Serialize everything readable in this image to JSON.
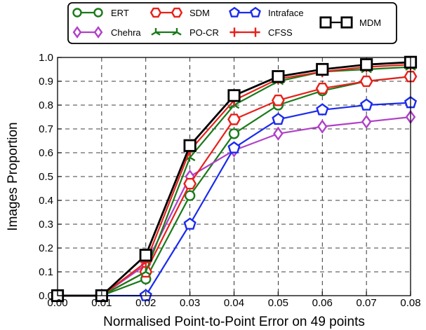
{
  "chart_data": {
    "type": "line",
    "title": "",
    "xlabel": "Normalised Point-to-Point Error on 49 points",
    "ylabel": "Images Proportion",
    "xlim": [
      0,
      0.08
    ],
    "ylim": [
      0,
      1.0
    ],
    "grid": true,
    "grid_style": "dashed",
    "legend_position": "top",
    "x_ticks": [
      "0.00",
      "0.01",
      "0.02",
      "0.03",
      "0.04",
      "0.05",
      "0.06",
      "0.07",
      "0.08"
    ],
    "y_ticks": [
      "0.0",
      "0.1",
      "0.2",
      "0.3",
      "0.4",
      "0.5",
      "0.6",
      "0.7",
      "0.8",
      "0.9",
      "1.0"
    ],
    "x": [
      0.0,
      0.01,
      0.02,
      0.03,
      0.04,
      0.05,
      0.06,
      0.07,
      0.08
    ],
    "series": [
      {
        "name": "ERT",
        "color": "#1a7a1a",
        "marker": "circle",
        "values": [
          0.0,
          0.0,
          0.07,
          0.42,
          0.68,
          0.8,
          0.86,
          0.9,
          0.92
        ]
      },
      {
        "name": "Chehra",
        "color": "#b040c8",
        "marker": "diamond",
        "values": [
          0.0,
          0.0,
          0.13,
          0.5,
          0.61,
          0.68,
          0.71,
          0.73,
          0.75
        ]
      },
      {
        "name": "SDM",
        "color": "#e8201a",
        "marker": "hexagon",
        "values": [
          0.0,
          0.0,
          0.1,
          0.47,
          0.74,
          0.82,
          0.87,
          0.9,
          0.92
        ]
      },
      {
        "name": "PO-CR",
        "color": "#1a7a1a",
        "marker": "tri",
        "values": [
          0.0,
          0.0,
          0.1,
          0.58,
          0.8,
          0.9,
          0.94,
          0.95,
          0.96
        ]
      },
      {
        "name": "Intraface",
        "color": "#1a2aee",
        "marker": "pentagon",
        "values": [
          0.0,
          0.0,
          0.0,
          0.3,
          0.62,
          0.74,
          0.78,
          0.8,
          0.81
        ]
      },
      {
        "name": "CFSS",
        "color": "#e8201a",
        "marker": "plus",
        "values": [
          0.0,
          0.0,
          0.14,
          0.61,
          0.82,
          0.91,
          0.94,
          0.96,
          0.97
        ]
      },
      {
        "name": "MDM",
        "color": "#000000",
        "marker": "square",
        "values": [
          0.0,
          0.0,
          0.17,
          0.63,
          0.84,
          0.92,
          0.95,
          0.97,
          0.98
        ]
      }
    ]
  }
}
